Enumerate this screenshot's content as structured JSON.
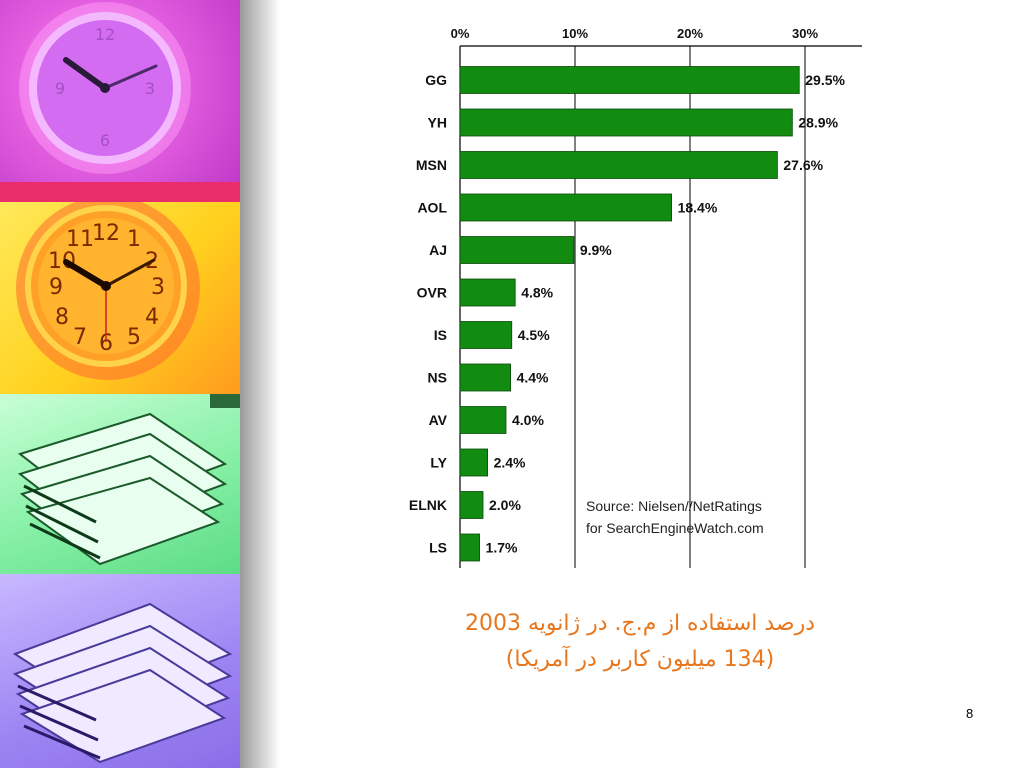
{
  "slide": {
    "caption_line1": "درصد استفاده از م.ج.  در ژانویه 2003",
    "caption_line2": "(134 میلیون کاربر در آمریکا)",
    "page_number": "8"
  },
  "colors": {
    "bar": "#118c11",
    "caption": "#e8761c"
  },
  "decorations": [
    "clock-image",
    "clock-image",
    "book-stack-image",
    "book-stack-image"
  ],
  "chart_data": {
    "type": "bar",
    "orientation": "horizontal",
    "categories": [
      "GG",
      "YH",
      "MSN",
      "AOL",
      "AJ",
      "OVR",
      "IS",
      "NS",
      "AV",
      "LY",
      "ELNK",
      "LS"
    ],
    "values": [
      29.5,
      28.9,
      27.6,
      18.4,
      9.9,
      4.8,
      4.5,
      4.4,
      4.0,
      2.4,
      2.0,
      1.7
    ],
    "value_labels": [
      "29.5%",
      "28.9%",
      "27.6%",
      "18.4%",
      "9.9%",
      "4.8%",
      "4.5%",
      "4.4%",
      "4.0%",
      "2.4%",
      "2.0%",
      "1.7%"
    ],
    "x_ticks": [
      0,
      10,
      20,
      30
    ],
    "x_tick_labels": [
      "0%",
      "10%",
      "20%",
      "30%"
    ],
    "xlim": [
      0,
      30
    ],
    "axis_position": "top",
    "grid": true,
    "source_line1": "Source: Nielsen//NetRatings",
    "source_line2": "for SearchEngineWatch.com",
    "title": "",
    "xlabel": "",
    "ylabel": ""
  }
}
